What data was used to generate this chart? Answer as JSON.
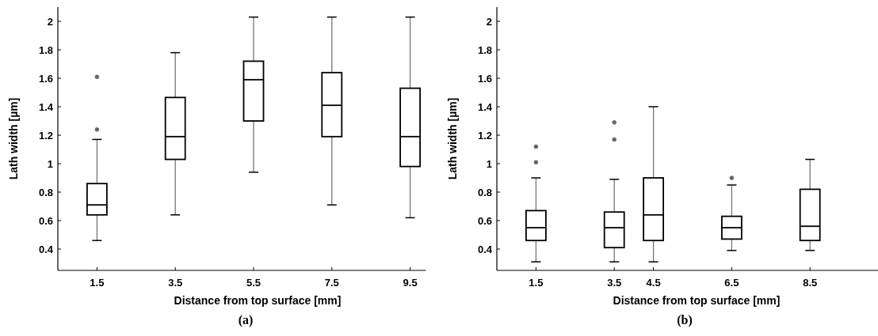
{
  "chart_data": [
    {
      "type": "box",
      "xlabel": "Distance from top surface [mm]",
      "ylabel": "Lath width [µm]",
      "annotations": [
        "(a)"
      ],
      "color": "#000000",
      "x": [
        1.5,
        3.5,
        5.5,
        7.5,
        9.5
      ],
      "xlim": [
        0.5,
        9.9
      ],
      "xticks": [
        1.5,
        3.5,
        5.5,
        7.5,
        9.5
      ],
      "ylim": [
        0.25,
        2.1
      ],
      "yticks": [
        0.4,
        0.6,
        0.8,
        1,
        1.2,
        1.4,
        1.6,
        1.8,
        2
      ],
      "boxes": [
        {
          "low": 0.46,
          "q1": 0.64,
          "median": 0.71,
          "q3": 0.86,
          "high": 1.17,
          "outliers": [
            1.24,
            1.61
          ]
        },
        {
          "low": 0.64,
          "q1": 1.03,
          "median": 1.19,
          "q3": 1.465,
          "high": 1.78
        },
        {
          "low": 0.94,
          "q1": 1.3,
          "median": 1.59,
          "q3": 1.72,
          "high": 2.03
        },
        {
          "low": 0.71,
          "q1": 1.19,
          "median": 1.41,
          "q3": 1.64,
          "high": 2.03
        },
        {
          "low": 0.62,
          "q1": 0.98,
          "median": 1.19,
          "q3": 1.53,
          "high": 2.03
        }
      ]
    },
    {
      "type": "box",
      "xlabel": "Distance from top surface [mm]",
      "ylabel": "Lath width [µm]",
      "annotations": [
        "(b)"
      ],
      "color": "#000000",
      "x": [
        1.5,
        3.5,
        4.5,
        6.5,
        8.5
      ],
      "xlim": [
        0.5,
        10.4
      ],
      "xticks": [
        1.5,
        3.5,
        4.5,
        6.5,
        8.5
      ],
      "ylim": [
        0.25,
        2.1
      ],
      "yticks": [
        0.4,
        0.6,
        0.8,
        1,
        1.2,
        1.4,
        1.6,
        1.8,
        2
      ],
      "boxes": [
        {
          "low": 0.31,
          "q1": 0.46,
          "median": 0.55,
          "q3": 0.67,
          "high": 0.9,
          "outliers": [
            1.01,
            1.12
          ]
        },
        {
          "low": 0.31,
          "q1": 0.41,
          "median": 0.55,
          "q3": 0.66,
          "high": 0.89,
          "outliers": [
            1.17,
            1.29
          ]
        },
        {
          "low": 0.31,
          "q1": 0.46,
          "median": 0.64,
          "q3": 0.9,
          "high": 1.4
        },
        {
          "low": 0.39,
          "q1": 0.47,
          "median": 0.55,
          "q3": 0.63,
          "high": 0.85,
          "outliers": [
            0.9
          ]
        },
        {
          "low": 0.39,
          "q1": 0.46,
          "median": 0.56,
          "q3": 0.82,
          "high": 1.03
        }
      ]
    }
  ]
}
